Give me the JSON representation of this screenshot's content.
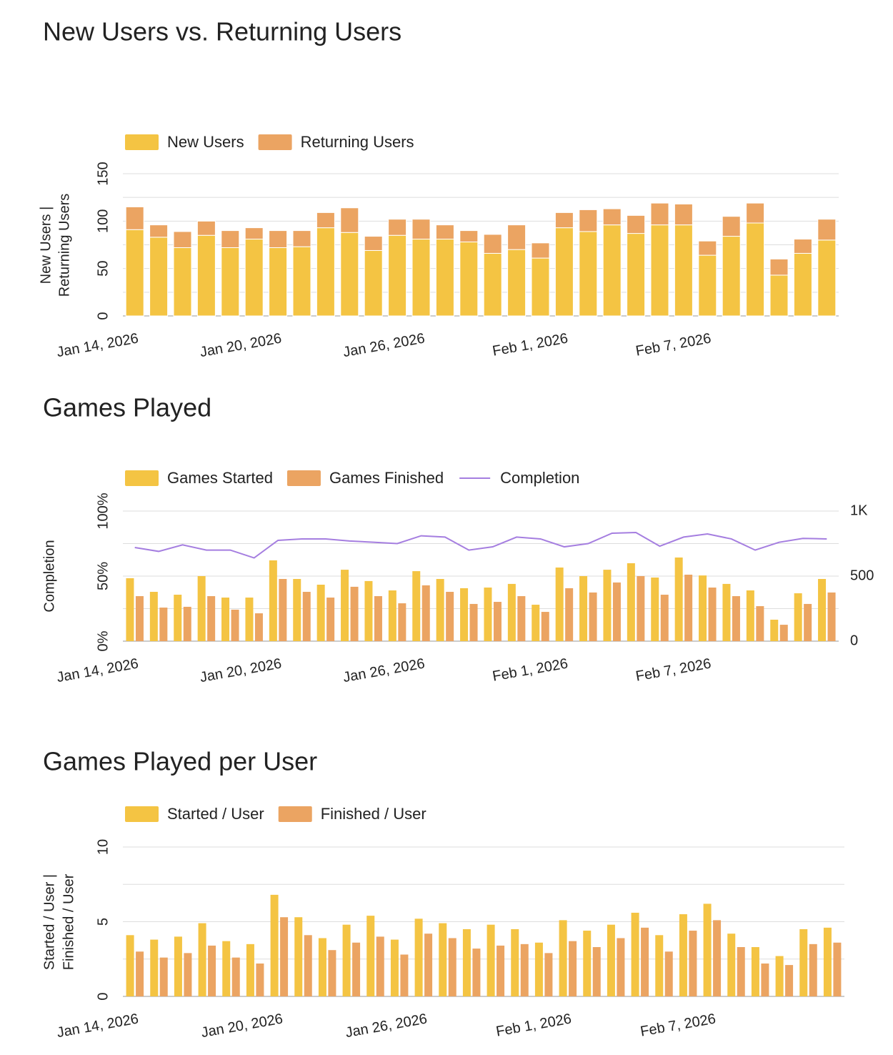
{
  "chart_data": [
    {
      "type": "bar",
      "stacked": true,
      "title": "New Users vs. Returning Users",
      "y_label": [
        "New Users |",
        "Returning Users"
      ],
      "categories": [
        "Jan 14, 2026",
        null,
        null,
        null,
        null,
        null,
        "Jan 20, 2026",
        null,
        null,
        null,
        null,
        null,
        "Jan 26, 2026",
        null,
        null,
        null,
        null,
        null,
        "Feb 1, 2026",
        null,
        null,
        null,
        null,
        null,
        "Feb 7, 2026",
        null,
        null,
        null,
        null,
        null
      ],
      "series": [
        {
          "name": "New Users",
          "color": "#f4c443",
          "values": [
            91,
            83,
            72,
            85,
            72,
            81,
            72,
            73,
            93,
            88,
            69,
            85,
            81,
            81,
            78,
            66,
            70,
            61,
            93,
            89,
            96,
            87,
            96,
            96,
            64,
            84,
            98,
            43,
            66,
            80
          ]
        },
        {
          "name": "Returning Users",
          "color": "#eba462",
          "values": [
            24,
            13,
            17,
            15,
            18,
            12,
            18,
            17,
            16,
            26,
            15,
            17,
            21,
            15,
            12,
            20,
            26,
            16,
            16,
            23,
            17,
            19,
            23,
            22,
            15,
            21,
            21,
            17,
            15,
            22
          ]
        }
      ],
      "ylim": [
        0,
        150
      ],
      "yticks": [
        0,
        50,
        100,
        150
      ],
      "minor_yticks": [
        25,
        75,
        125
      ],
      "grid": true,
      "legend": "top-left"
    },
    {
      "type": "bar",
      "stacked": false,
      "title": "Games Played",
      "y_label": [
        "Completion"
      ],
      "categories": [
        "Jan 14, 2026",
        null,
        null,
        null,
        null,
        null,
        "Jan 20, 2026",
        null,
        null,
        null,
        null,
        null,
        "Jan 26, 2026",
        null,
        null,
        null,
        null,
        null,
        "Feb 1, 2026",
        null,
        null,
        null,
        null,
        null,
        "Feb 7, 2026",
        null,
        null,
        null,
        null,
        null
      ],
      "series": [
        {
          "name": "Games Started",
          "color": "#f4c443",
          "axis": "y2",
          "values": [
            484,
            379,
            357,
            500,
            335,
            335,
            621,
            478,
            434,
            549,
            462,
            390,
            538,
            478,
            407,
            412,
            440,
            280,
            566,
            500,
            549,
            599,
            489,
            643,
            505,
            440,
            390,
            165,
            368,
            478
          ]
        },
        {
          "name": "Games Finished",
          "color": "#eba462",
          "axis": "y2",
          "values": [
            346,
            258,
            264,
            346,
            242,
            214,
            478,
            379,
            335,
            418,
            346,
            291,
            429,
            379,
            286,
            302,
            346,
            225,
            407,
            374,
            451,
            500,
            357,
            511,
            412,
            346,
            269,
            126,
            286,
            374
          ]
        },
        {
          "name": "Completion",
          "color": "#a57ee0",
          "type": "line",
          "values": [
            72,
            69,
            74,
            70,
            70,
            64,
            77.5,
            78.6,
            78.6,
            77,
            76,
            75,
            81,
            80,
            70,
            72.5,
            80,
            78.6,
            72.5,
            75,
            83,
            83.5,
            73,
            80,
            82.4,
            78.6,
            70,
            76,
            79,
            78.6
          ]
        }
      ],
      "ylim": [
        0,
        100
      ],
      "yticks": [
        {
          "value": 0,
          "label": "0%"
        },
        {
          "value": 50,
          "label": "50%"
        },
        {
          "value": 100,
          "label": "100%"
        }
      ],
      "minor_yticks": [
        25,
        75
      ],
      "y2lim": [
        0,
        1000
      ],
      "y2ticks": [
        0,
        500,
        {
          "value": 1000,
          "label": "1K"
        }
      ],
      "grid": true,
      "legend": "top-left"
    },
    {
      "type": "bar",
      "stacked": false,
      "title": "Games Played per User",
      "y_label": [
        "Started / User |",
        "Finished / User"
      ],
      "categories": [
        "Jan 14, 2026",
        null,
        null,
        null,
        null,
        null,
        "Jan 20, 2026",
        null,
        null,
        null,
        null,
        null,
        "Jan 26, 2026",
        null,
        null,
        null,
        null,
        null,
        "Feb 1, 2026",
        null,
        null,
        null,
        null,
        null,
        "Feb 7, 2026",
        null,
        null,
        null,
        null,
        null
      ],
      "series": [
        {
          "name": "Started / User",
          "color": "#f4c443",
          "values": [
            4.1,
            3.8,
            4.0,
            4.9,
            3.7,
            3.5,
            6.8,
            5.3,
            3.9,
            4.8,
            5.4,
            3.8,
            5.2,
            4.9,
            4.5,
            4.8,
            4.5,
            3.6,
            5.1,
            4.4,
            4.8,
            5.6,
            4.1,
            5.5,
            6.2,
            4.2,
            3.3,
            2.7,
            4.5,
            4.6
          ]
        },
        {
          "name": "Finished / User",
          "color": "#eba462",
          "values": [
            3.0,
            2.6,
            2.9,
            3.4,
            2.6,
            2.2,
            5.3,
            4.1,
            3.1,
            3.6,
            4.0,
            2.8,
            4.2,
            3.9,
            3.2,
            3.4,
            3.5,
            2.9,
            3.7,
            3.3,
            3.9,
            4.6,
            3.0,
            4.4,
            5.1,
            3.3,
            2.2,
            2.1,
            3.5,
            3.6
          ]
        }
      ],
      "ylim": [
        0,
        10
      ],
      "yticks": [
        0,
        5,
        10
      ],
      "minor_yticks": [
        2.5,
        7.5
      ],
      "grid": true,
      "legend": "top-left"
    }
  ]
}
